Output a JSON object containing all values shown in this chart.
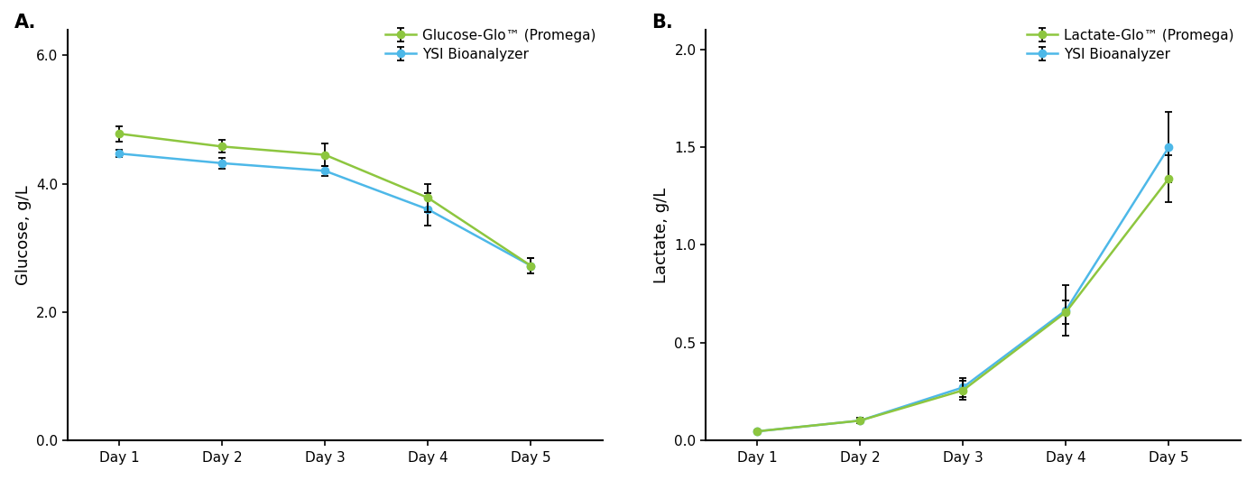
{
  "panel_A": {
    "title": "A.",
    "ylabel": "Glucose, g/L",
    "x_labels": [
      "Day 1",
      "Day 2",
      "Day 3",
      "Day 4",
      "Day 5"
    ],
    "x_values": [
      1,
      2,
      3,
      4,
      5
    ],
    "green_y": [
      4.78,
      4.58,
      4.45,
      3.78,
      2.72
    ],
    "green_yerr": [
      0.12,
      0.1,
      0.18,
      0.22,
      0.12
    ],
    "blue_y": [
      4.47,
      4.32,
      4.2,
      3.6,
      2.72
    ],
    "blue_yerr": [
      0.06,
      0.08,
      0.08,
      0.25,
      0.12
    ],
    "ylim": [
      0.0,
      6.4
    ],
    "yticks": [
      0.0,
      2.0,
      4.0,
      6.0
    ],
    "legend": [
      "Glucose-Glo™ (Promega)",
      "YSI Bioanalyzer"
    ]
  },
  "panel_B": {
    "title": "B.",
    "ylabel": "Lactate, g/L",
    "x_labels": [
      "Day 1",
      "Day 2",
      "Day 3",
      "Day 4",
      "Day 5"
    ],
    "x_values": [
      1,
      2,
      3,
      4,
      5
    ],
    "green_y": [
      0.045,
      0.1,
      0.255,
      0.655,
      1.34
    ],
    "green_yerr": [
      0.005,
      0.015,
      0.05,
      0.06,
      0.12
    ],
    "blue_y": [
      0.045,
      0.1,
      0.27,
      0.665,
      1.5
    ],
    "blue_yerr": [
      0.005,
      0.015,
      0.05,
      0.13,
      0.18
    ],
    "ylim": [
      0.0,
      2.1
    ],
    "yticks": [
      0.0,
      0.5,
      1.0,
      1.5,
      2.0
    ],
    "legend": [
      "Lactate-Glo™ (Promega)",
      "YSI Bioanalyzer"
    ]
  },
  "green_color": "#8DC63F",
  "blue_color": "#4DB8E8",
  "marker": "o",
  "markersize": 6,
  "linewidth": 1.8,
  "elinewidth": 1.3,
  "capsize": 3,
  "capthick": 1.3,
  "ecolor": "black",
  "fontsize_label": 13,
  "fontsize_tick": 11,
  "fontsize_panel_label": 15,
  "fontsize_legend": 11
}
